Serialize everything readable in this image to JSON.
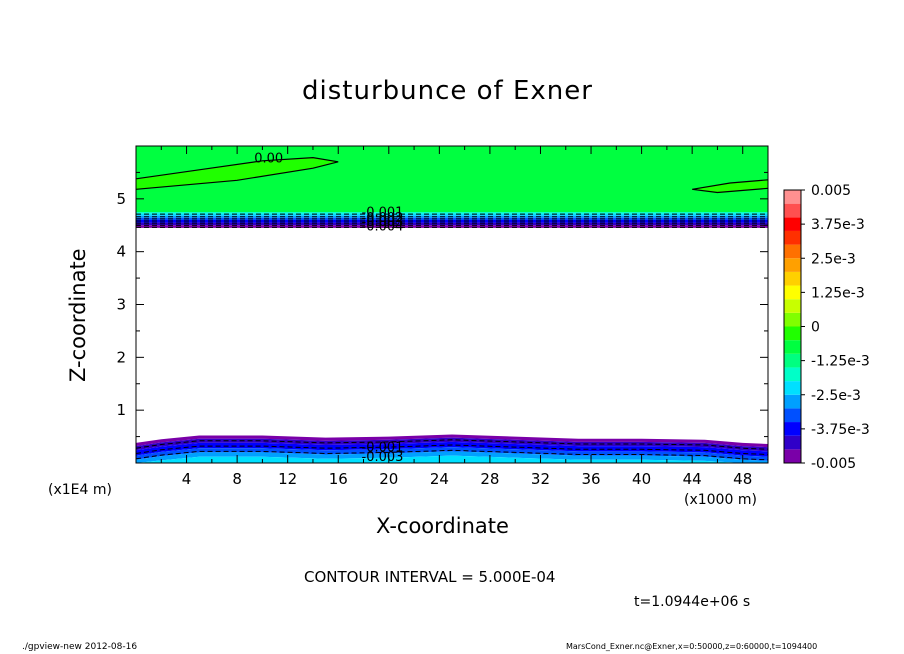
{
  "chart_data": {
    "type": "heatmap",
    "title": "disturbunce of Exner",
    "xlabel": "X-coordinate",
    "ylabel": "Z-coordinate",
    "x_unit_left": "(x1E4 m)",
    "x_unit_right": "(x1000 m)",
    "xlim": [
      0,
      50
    ],
    "ylim": [
      0,
      6
    ],
    "x_ticks": [
      "4",
      "8",
      "12",
      "16",
      "20",
      "24",
      "28",
      "32",
      "36",
      "40",
      "44",
      "48"
    ],
    "y_ticks": [
      "1",
      "2",
      "3",
      "4",
      "5"
    ],
    "x_tick_values": [
      4,
      8,
      12,
      16,
      20,
      24,
      28,
      32,
      36,
      40,
      44,
      48
    ],
    "y_tick_values": [
      1,
      2,
      3,
      4,
      5
    ],
    "contour_interval_text": "CONTOUR INTERVAL = 5.000E-04",
    "time_text": "t=1.0944e+06 s",
    "colorbar": {
      "labels": [
        "0.005",
        "3.75e-3",
        "2.5e-3",
        "1.25e-3",
        "0",
        "-1.25e-3",
        "-2.5e-3",
        "-3.75e-3",
        "-0.005"
      ],
      "label_values": [
        0.005,
        0.00375,
        0.0025,
        0.00125,
        0,
        -0.00125,
        -0.0025,
        -0.00375,
        -0.005
      ],
      "colors": [
        "#7a00a8",
        "#3000c8",
        "#0000ff",
        "#0050ff",
        "#00a0ff",
        "#00e0ff",
        "#00ffc8",
        "#00ff80",
        "#00ff40",
        "#20ff00",
        "#80ff00",
        "#c8ff00",
        "#ffff00",
        "#ffd000",
        "#ffa000",
        "#ff7000",
        "#ff3000",
        "#ff0000",
        "#ff5050",
        "#ff9090"
      ]
    },
    "contour_labels": [
      {
        "text": "0.00",
        "x": 10.5,
        "z": 5.75
      },
      {
        "text": "-0.001",
        "x": 19.5,
        "z": 4.73
      },
      {
        "text": "-0.002",
        "x": 19.5,
        "z": 4.63
      },
      {
        "text": "-0.003",
        "x": 19.5,
        "z": 4.55
      },
      {
        "text": "-0.004",
        "x": 19.5,
        "z": 4.47
      },
      {
        "text": "-0.001",
        "x": 19.5,
        "z": 0.28
      },
      {
        "text": "-0.003",
        "x": 19.5,
        "z": 0.1
      }
    ]
  },
  "footer": {
    "left": "./gpview-new   2012-08-16",
    "right": "MarsCond_Exner.nc@Exner,x=0:50000,z=0:60000,t=1094400"
  },
  "colors": {
    "green_region": "#00ff40",
    "purple_edge": "#7a00a8"
  }
}
